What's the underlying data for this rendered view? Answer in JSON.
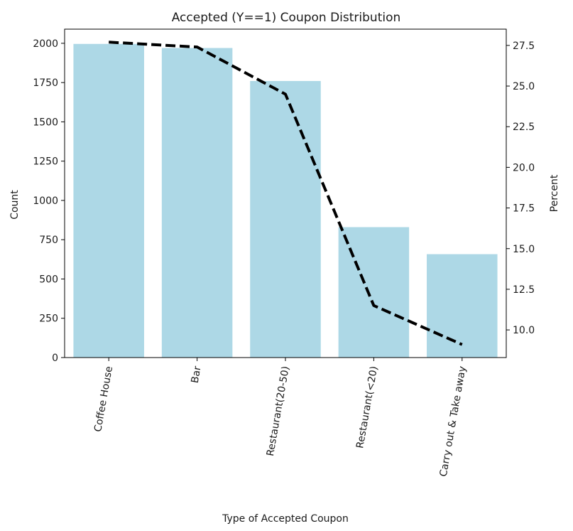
{
  "chart_data": {
    "type": "bar",
    "title": "Accepted (Y==1) Coupon Distribution",
    "xlabel": "Type of Accepted Coupon",
    "ylabel": "Count",
    "y2label": "Percent",
    "categories": [
      "Coffee House",
      "Bar",
      "Restaurant(20-50)",
      "Restaurant(<20)",
      "Carry out & Take away"
    ],
    "series": [
      {
        "name": "Count",
        "type": "bar",
        "axis": "left",
        "values": [
          1996,
          1970,
          1760,
          830,
          658
        ],
        "color": "#add8e6"
      },
      {
        "name": "Percent",
        "type": "line",
        "axis": "right",
        "values": [
          27.7,
          27.4,
          24.5,
          11.5,
          9.1
        ],
        "color": "#000000",
        "dashed": true
      }
    ],
    "ylim": [
      0,
      2090
    ],
    "y_ticks": [
      0,
      250,
      500,
      750,
      1000,
      1250,
      1500,
      1750,
      2000
    ],
    "y2lim": [
      8.3,
      28.5
    ],
    "y2_ticks": [
      10.0,
      12.5,
      15.0,
      17.5,
      20.0,
      22.5,
      25.0,
      27.5
    ],
    "y2_tick_labels": [
      "10.0",
      "12.5",
      "15.0",
      "17.5",
      "20.0",
      "22.5",
      "25.0",
      "27.5"
    ],
    "grid": false,
    "legend": "none"
  }
}
